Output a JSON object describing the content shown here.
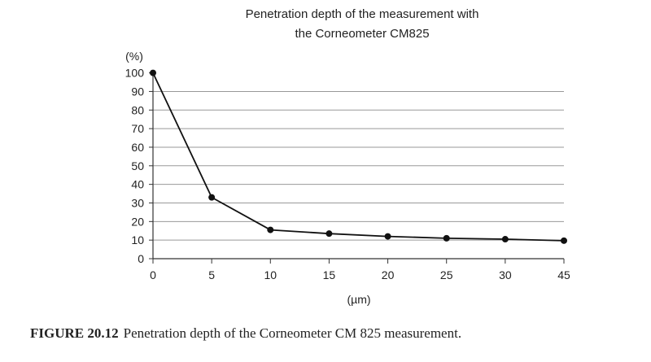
{
  "chart_data": {
    "type": "line",
    "title": [
      "Penetration depth of the measurement with",
      "the Corneometer CM825"
    ],
    "ylabel": "(%)",
    "xlabel": "(µm)",
    "categories": [
      "0",
      "5",
      "10",
      "15",
      "20",
      "25",
      "30",
      "45"
    ],
    "y_ticks": [
      "0",
      "10",
      "20",
      "30",
      "40",
      "50",
      "60",
      "70",
      "80",
      "90",
      "100"
    ],
    "ylim": [
      0,
      100
    ],
    "grid": true,
    "series": [
      {
        "values": [
          100,
          33,
          15.5,
          13.5,
          12,
          11,
          10.5,
          9.7
        ],
        "color": "#111111"
      }
    ],
    "gridline_color": "#999999"
  },
  "caption": {
    "label": "FIGURE 20.12",
    "text": "Penetration depth of the Corneometer CM 825 measurement."
  }
}
